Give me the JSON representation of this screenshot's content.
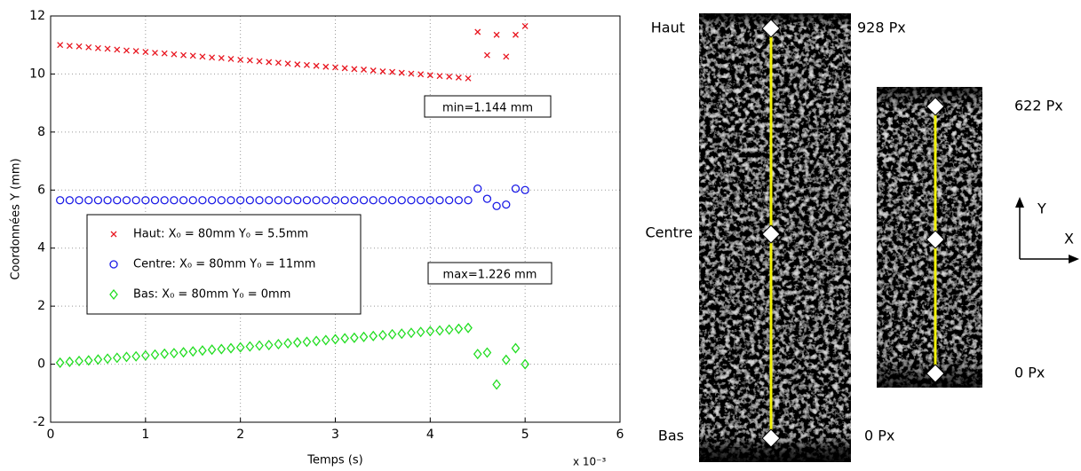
{
  "chart_data": {
    "type": "scatter",
    "xlabel": "Temps (s)",
    "ylabel": "Coordonnées Y (mm)",
    "x_multiplier": "x 10⁻³",
    "xlim": [
      0,
      6
    ],
    "xticks": [
      0,
      1,
      2,
      3,
      4,
      5,
      6
    ],
    "ylim": [
      -2,
      12
    ],
    "yticks": [
      -2,
      0,
      2,
      4,
      6,
      8,
      10,
      12
    ],
    "grid": true,
    "x": [
      0.1,
      0.2,
      0.3,
      0.4,
      0.5,
      0.6,
      0.7,
      0.8,
      0.9,
      1.0,
      1.1,
      1.2,
      1.3,
      1.4,
      1.5,
      1.6,
      1.7,
      1.8,
      1.9,
      2.0,
      2.1,
      2.2,
      2.3,
      2.4,
      2.5,
      2.6,
      2.7,
      2.8,
      2.9,
      3.0,
      3.1,
      3.2,
      3.3,
      3.4,
      3.5,
      3.6,
      3.7,
      3.8,
      3.9,
      4.0,
      4.1,
      4.2,
      4.3,
      4.4,
      4.5,
      4.6,
      4.7,
      4.8,
      4.9,
      5.0
    ],
    "series": [
      {
        "name": "Haut: X₀ = 80mm Y₀ = 5.5mm",
        "color": "#e8141e",
        "marker": "x",
        "values": [
          11.0,
          10.97,
          10.95,
          10.92,
          10.89,
          10.87,
          10.84,
          10.81,
          10.79,
          10.76,
          10.73,
          10.71,
          10.68,
          10.65,
          10.63,
          10.6,
          10.57,
          10.55,
          10.52,
          10.49,
          10.47,
          10.44,
          10.41,
          10.39,
          10.36,
          10.33,
          10.31,
          10.28,
          10.25,
          10.23,
          10.2,
          10.17,
          10.15,
          10.12,
          10.09,
          10.07,
          10.04,
          10.01,
          9.99,
          9.96,
          9.93,
          9.91,
          9.88,
          9.85,
          11.45,
          10.65,
          11.35,
          10.6,
          11.35,
          11.65
        ]
      },
      {
        "name": "Centre: X₀ = 80mm Y₀ = 11mm",
        "color": "#1a1ae6",
        "marker": "o",
        "values": [
          5.65,
          5.65,
          5.65,
          5.65,
          5.65,
          5.65,
          5.65,
          5.65,
          5.65,
          5.65,
          5.65,
          5.65,
          5.65,
          5.65,
          5.65,
          5.65,
          5.65,
          5.65,
          5.65,
          5.65,
          5.65,
          5.65,
          5.65,
          5.65,
          5.65,
          5.65,
          5.65,
          5.65,
          5.65,
          5.65,
          5.65,
          5.65,
          5.65,
          5.65,
          5.65,
          5.65,
          5.65,
          5.65,
          5.65,
          5.65,
          5.65,
          5.65,
          5.65,
          5.65,
          6.05,
          5.7,
          5.45,
          5.5,
          6.05,
          6.0
        ]
      },
      {
        "name": "Bas: X₀ = 80mm Y₀ = 0mm",
        "color": "#22dd22",
        "marker": "d",
        "values": [
          0.05,
          0.08,
          0.11,
          0.13,
          0.16,
          0.19,
          0.22,
          0.25,
          0.27,
          0.3,
          0.33,
          0.36,
          0.38,
          0.41,
          0.44,
          0.47,
          0.5,
          0.52,
          0.55,
          0.58,
          0.61,
          0.64,
          0.66,
          0.69,
          0.72,
          0.75,
          0.77,
          0.8,
          0.83,
          0.86,
          0.89,
          0.91,
          0.94,
          0.97,
          1.0,
          1.03,
          1.05,
          1.08,
          1.11,
          1.14,
          1.16,
          1.19,
          1.22,
          1.25,
          0.35,
          0.4,
          -0.7,
          0.15,
          0.55,
          0.0
        ]
      }
    ],
    "annotations": [
      "min=1.144 mm",
      "max=1.226 mm"
    ]
  },
  "images": {
    "large": {
      "top": "Haut",
      "middle": "Centre",
      "bottom": "Bas",
      "top_px": "928 Px",
      "bottom_px": "0 Px"
    },
    "small": {
      "top_px": "622 Px",
      "bottom_px": "0 Px"
    },
    "axes": {
      "y": "Y",
      "x": "X"
    }
  }
}
